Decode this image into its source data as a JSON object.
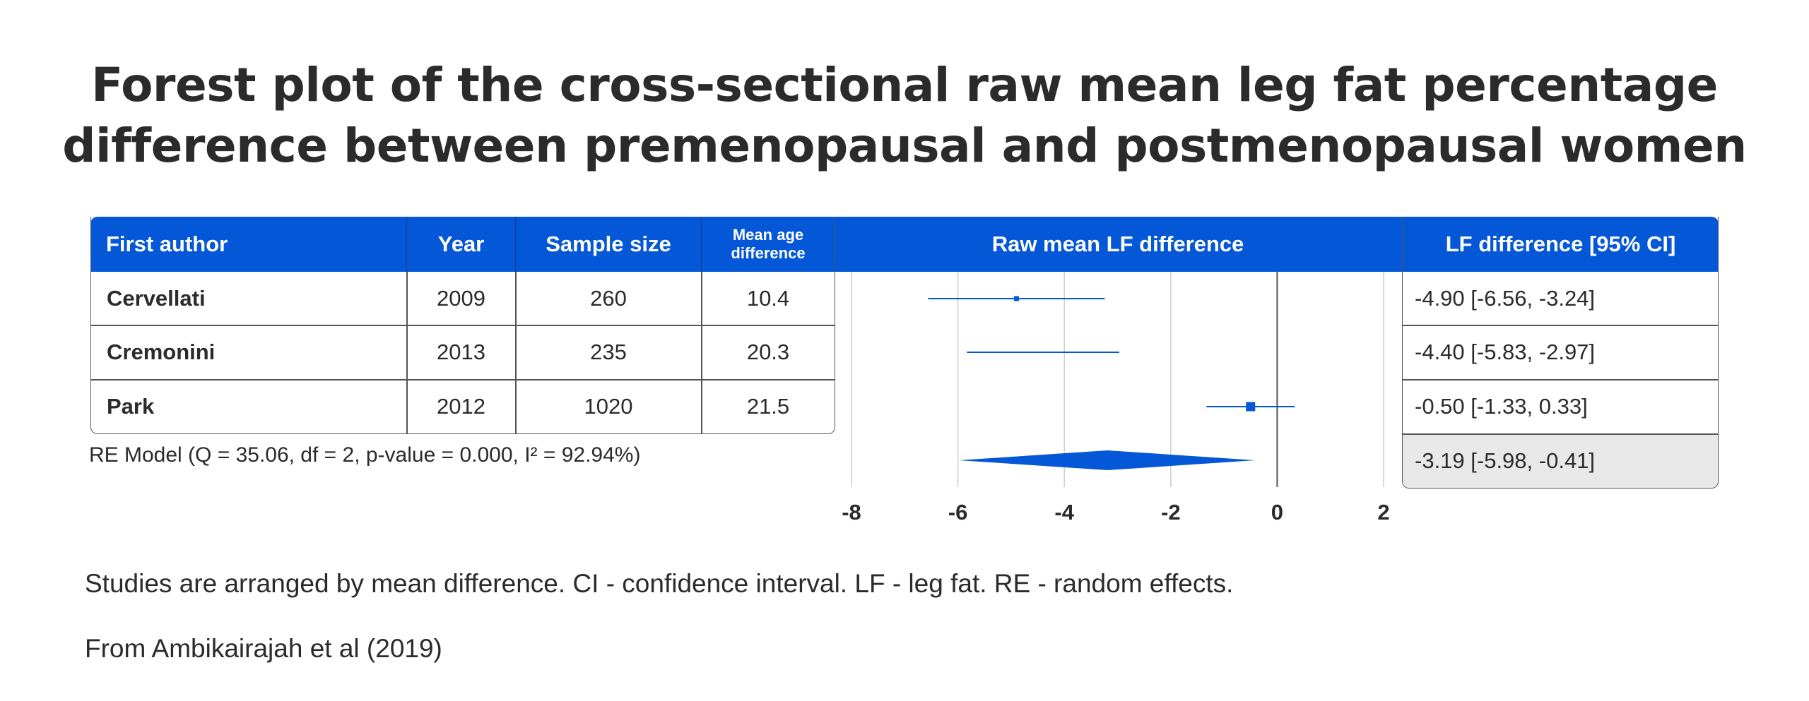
{
  "title_lines": [
    "Forest plot of the cross-sectional raw mean leg fat percentage",
    "difference between premenopausal and postmenopausal women"
  ],
  "table": {
    "headers": {
      "author": "First author",
      "year": "Year",
      "sample": "Sample size",
      "age_line1": "Mean age",
      "age_line2": "difference",
      "plot": "Raw mean LF difference",
      "ci": "LF difference [95% CI]"
    },
    "rows": [
      {
        "author": "Cervellati",
        "year": "2009",
        "sample": "260",
        "age": "10.4",
        "ci_text": "-4.90 [-6.56, -3.24]"
      },
      {
        "author": "Cremonini",
        "year": "2013",
        "sample": "235",
        "age": "20.3",
        "ci_text": "-4.40 [-5.83, -2.97]"
      },
      {
        "author": "Park",
        "year": "2012",
        "sample": "1020",
        "age": "21.5",
        "ci_text": "-0.50 [-1.33, 0.33]"
      }
    ],
    "re_model": "RE Model (Q = 35.06, df = 2, p-value = 0.000, I² = 92.94%)",
    "re_ci_text": "-3.19 [-5.98, -0.41]"
  },
  "chart_data": {
    "type": "forest",
    "xlabel": "",
    "xlim": [
      -8,
      2
    ],
    "xticks": [
      -8,
      -6,
      -4,
      -2,
      0,
      2
    ],
    "grid": true,
    "studies": [
      {
        "label": "Cervellati",
        "estimate": -4.9,
        "lower": -6.56,
        "upper": -3.24,
        "weight": 260
      },
      {
        "label": "Cremonini",
        "estimate": -4.4,
        "lower": -5.83,
        "upper": -2.97,
        "weight": 235
      },
      {
        "label": "Park",
        "estimate": -0.5,
        "lower": -1.33,
        "upper": 0.33,
        "weight": 1020
      }
    ],
    "summary": {
      "label": "RE Model",
      "estimate": -3.19,
      "lower": -5.98,
      "upper": -0.41
    },
    "colors": {
      "marker": "#0457d6",
      "grid": "#cccccc",
      "zero_line": "#555555"
    }
  },
  "notes": [
    "Studies are arranged by mean difference. CI - confidence interval. LF - leg fat. RE - random effects.",
    "From Ambikairajah et al (2019)"
  ],
  "colors": {
    "header_bg": "#0457d6",
    "summary_bg": "#e8e8e8"
  }
}
